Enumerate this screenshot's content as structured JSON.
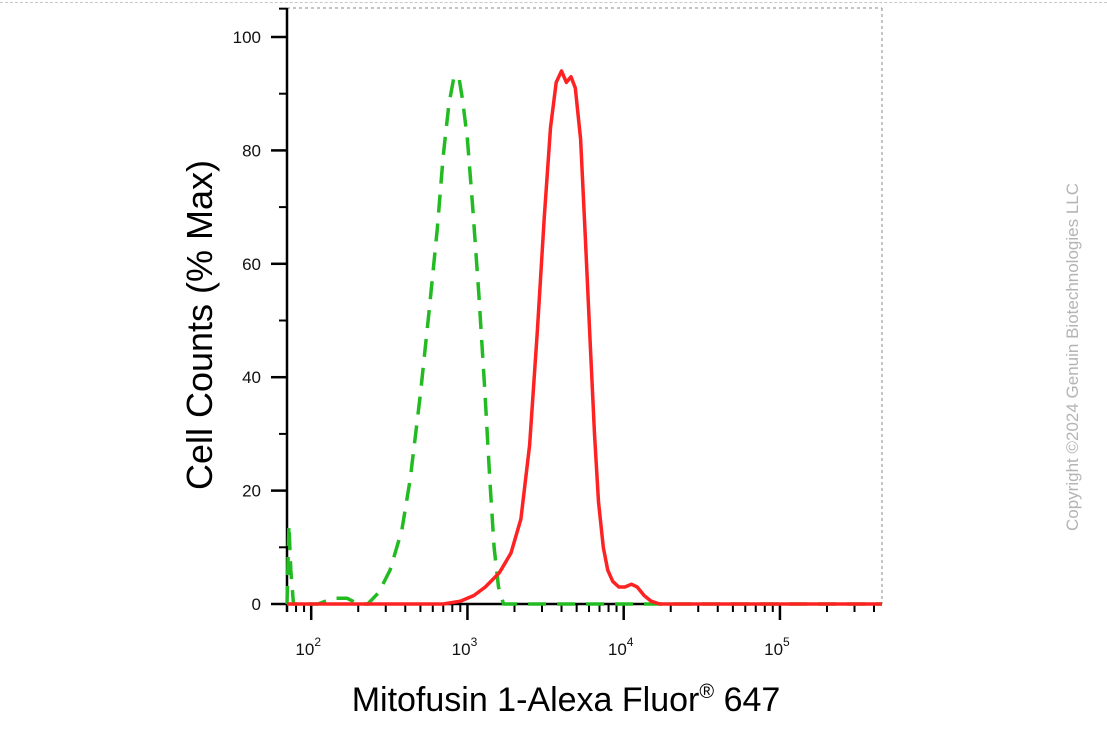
{
  "chart_data": {
    "type": "line",
    "title": "",
    "xlabel": "Mitofusin 1-Alexa Fluor",
    "xlabel_superscript": "®",
    "xlabel_suffix": " 647",
    "ylabel": "Cell Counts (% Max)",
    "x_scale": "log",
    "xlim": [
      70,
      450000
    ],
    "ylim": [
      0,
      104
    ],
    "y_ticks": [
      0,
      20,
      40,
      60,
      80,
      100
    ],
    "x_ticks": [
      {
        "value": 100,
        "base": "10",
        "exp": "2"
      },
      {
        "value": 1000,
        "base": "10",
        "exp": "3"
      },
      {
        "value": 10000,
        "base": "10",
        "exp": "4"
      },
      {
        "value": 100000,
        "base": "10",
        "exp": "5"
      }
    ],
    "grid": false,
    "series": [
      {
        "style": "dashed",
        "color": "#22bb22",
        "points": [
          [
            70,
            0
          ],
          [
            72,
            14
          ],
          [
            74,
            6
          ],
          [
            77,
            0
          ],
          [
            90,
            0
          ],
          [
            110,
            0
          ],
          [
            140,
            1
          ],
          [
            170,
            1
          ],
          [
            200,
            0
          ],
          [
            230,
            0
          ],
          [
            270,
            2
          ],
          [
            320,
            6
          ],
          [
            380,
            13
          ],
          [
            430,
            22
          ],
          [
            500,
            37
          ],
          [
            570,
            52
          ],
          [
            640,
            66
          ],
          [
            700,
            79
          ],
          [
            760,
            88
          ],
          [
            820,
            93
          ],
          [
            880,
            93
          ],
          [
            930,
            89
          ],
          [
            1000,
            82
          ],
          [
            1080,
            70
          ],
          [
            1180,
            55
          ],
          [
            1290,
            38
          ],
          [
            1390,
            22
          ],
          [
            1480,
            10
          ],
          [
            1580,
            3
          ],
          [
            1700,
            0
          ],
          [
            2500,
            0
          ],
          [
            4000,
            0
          ],
          [
            8000,
            0
          ],
          [
            30000,
            0
          ],
          [
            100000,
            0
          ],
          [
            450000,
            0
          ]
        ]
      },
      {
        "style": "solid",
        "color": "#ff2222",
        "points": [
          [
            70,
            0
          ],
          [
            300,
            0
          ],
          [
            700,
            0
          ],
          [
            900,
            0.5
          ],
          [
            1100,
            1.5
          ],
          [
            1300,
            3
          ],
          [
            1600,
            5.5
          ],
          [
            1900,
            9
          ],
          [
            2200,
            15
          ],
          [
            2500,
            28
          ],
          [
            2800,
            48
          ],
          [
            3100,
            68
          ],
          [
            3400,
            84
          ],
          [
            3700,
            92
          ],
          [
            4000,
            94
          ],
          [
            4300,
            92
          ],
          [
            4600,
            93
          ],
          [
            4900,
            91
          ],
          [
            5300,
            82
          ],
          [
            5700,
            64
          ],
          [
            6100,
            46
          ],
          [
            6500,
            30
          ],
          [
            6900,
            18
          ],
          [
            7400,
            10
          ],
          [
            7900,
            6
          ],
          [
            8500,
            4
          ],
          [
            9300,
            3
          ],
          [
            10200,
            3
          ],
          [
            11200,
            3.5
          ],
          [
            12200,
            3
          ],
          [
            13500,
            1.5
          ],
          [
            15000,
            0.5
          ],
          [
            17000,
            0
          ],
          [
            30000,
            0
          ],
          [
            100000,
            0
          ],
          [
            450000,
            0
          ]
        ]
      }
    ]
  },
  "copyright": "Copyright ©2024 Genuin Biotechnologies LLC"
}
